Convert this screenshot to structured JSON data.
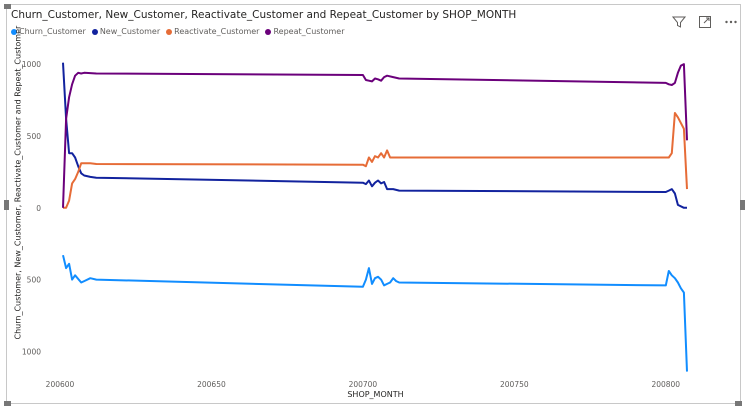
{
  "visual": {
    "title": "Churn_Customer, New_Customer, Reactivate_Customer and Repeat_Customer by SHOP_MONTH",
    "toolbar": {
      "filter_icon": "filter-icon",
      "focus_icon": "focus-mode-icon",
      "more_icon": "more-options-icon"
    }
  },
  "chart_data": {
    "type": "line",
    "title": "Churn_Customer, New_Customer, Reactivate_Customer and Repeat_Customer by SHOP_MONTH",
    "xlabel": "SHOP_MONTH",
    "ylabel": "Churn_Customer, New_Customer, Reactivate_Customer and Repeat_Customer",
    "xlim": [
      200600,
      200808
    ],
    "ylim": [
      -1150,
      1050
    ],
    "x_ticks": [
      200600,
      200650,
      200700,
      200750,
      200800
    ],
    "y_ticks": [
      1000,
      500,
      0,
      -500,
      -1000
    ],
    "y_tick_labels": [
      "1000",
      "500",
      "0",
      "500",
      "1000"
    ],
    "grid": false,
    "legend_position": "top-left",
    "series": [
      {
        "name": "Churn_Customer",
        "color": "#118DFF",
        "x": [
          200601,
          200602,
          200603,
          200604,
          200605,
          200607,
          200608,
          200610,
          200612,
          200700,
          200701,
          200702,
          200703,
          200704,
          200705,
          200706,
          200707,
          200708,
          200709,
          200710,
          200711,
          200712,
          200800,
          200801,
          200802,
          200803,
          200804,
          200805,
          200806,
          200807
        ],
        "y": [
          -330,
          -420,
          -390,
          -500,
          -470,
          -520,
          -510,
          -490,
          -500,
          -550,
          -500,
          -420,
          -530,
          -490,
          -480,
          -500,
          -540,
          -530,
          -520,
          -490,
          -510,
          -520,
          -540,
          -440,
          -470,
          -490,
          -520,
          -560,
          -590,
          -1140
        ]
      },
      {
        "name": "New_Customer",
        "color": "#12239E",
        "x": [
          200601,
          200602,
          200603,
          200604,
          200605,
          200606,
          200607,
          200608,
          200610,
          200612,
          200700,
          200701,
          200702,
          200703,
          200704,
          200705,
          200706,
          200707,
          200708,
          200710,
          200712,
          200800,
          200801,
          200802,
          200803,
          200804,
          200806,
          200807
        ],
        "y": [
          1010,
          620,
          380,
          380,
          350,
          290,
          240,
          225,
          215,
          210,
          175,
          165,
          190,
          150,
          175,
          190,
          170,
          180,
          130,
          130,
          120,
          110,
          120,
          130,
          100,
          20,
          0,
          0
        ]
      },
      {
        "name": "Reactivate_Customer",
        "color": "#E66C37",
        "x": [
          200601,
          200602,
          200603,
          200604,
          200605,
          200606,
          200607,
          200608,
          200610,
          200612,
          200700,
          200701,
          200702,
          200703,
          200704,
          200705,
          200706,
          200707,
          200708,
          200709,
          200710,
          200712,
          200800,
          200801,
          200802,
          200803,
          200804,
          200806,
          200807
        ],
        "y": [
          0,
          0,
          50,
          170,
          200,
          250,
          310,
          310,
          310,
          305,
          300,
          290,
          350,
          320,
          360,
          350,
          380,
          350,
          400,
          350,
          350,
          350,
          350,
          350,
          380,
          660,
          630,
          550,
          130
        ]
      },
      {
        "name": "Repeat_Customer",
        "color": "#6B007B",
        "x": [
          200601,
          200602,
          200603,
          200604,
          200605,
          200606,
          200607,
          200608,
          200610,
          200612,
          200700,
          200701,
          200702,
          200703,
          200704,
          200705,
          200706,
          200707,
          200708,
          200710,
          200712,
          200800,
          200801,
          200802,
          200803,
          200804,
          200805,
          200806,
          200807
        ],
        "y": [
          0,
          620,
          770,
          860,
          920,
          940,
          935,
          940,
          938,
          935,
          925,
          890,
          885,
          880,
          900,
          895,
          885,
          910,
          920,
          910,
          900,
          870,
          860,
          855,
          870,
          940,
          990,
          1000,
          470
        ]
      }
    ]
  }
}
